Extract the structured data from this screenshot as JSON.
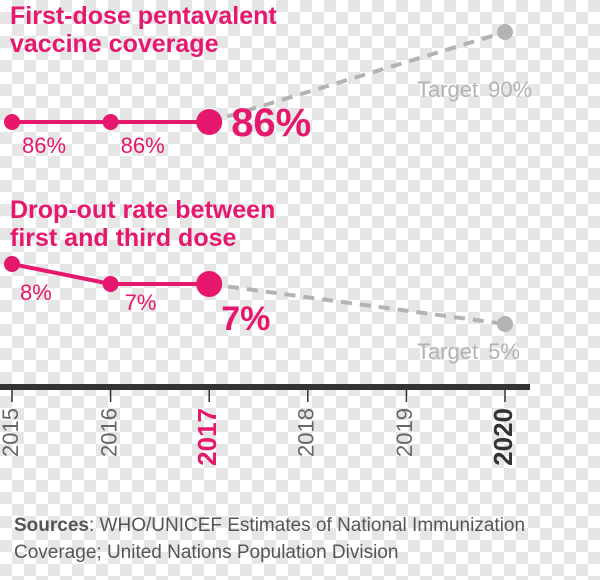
{
  "colors": {
    "accent": "#e5186d",
    "target": "#b3b3b3",
    "axis": "#333333",
    "text_gray": "#555555"
  },
  "chart_data": [
    {
      "type": "line",
      "title_lines": [
        "First-dose pentavalent",
        "vaccine coverage"
      ],
      "x": [
        2015,
        2016,
        2017
      ],
      "values": [
        86,
        86,
        86
      ],
      "point_labels": [
        "86%",
        "86%",
        "86%"
      ],
      "target": {
        "x": 2020,
        "value": 90,
        "label_text": "Target",
        "label_value": "90%"
      }
    },
    {
      "type": "line",
      "title_lines": [
        "Drop-out rate between",
        "first and third dose"
      ],
      "x": [
        2015,
        2016,
        2017
      ],
      "values": [
        8,
        7,
        7
      ],
      "point_labels": [
        "8%",
        "7%",
        "7%"
      ],
      "target": {
        "x": 2020,
        "value": 5,
        "label_text": "Target",
        "label_value": "5%"
      }
    }
  ],
  "x_axis": {
    "ticks": [
      "2015",
      "2016",
      "2017",
      "2018",
      "2019",
      "2020"
    ],
    "highlight": "2017",
    "bold": "2020"
  },
  "sources": {
    "label": "Sources",
    "text": ": WHO/UNICEF Estimates of National Immunization Coverage; United Nations Population Division"
  }
}
